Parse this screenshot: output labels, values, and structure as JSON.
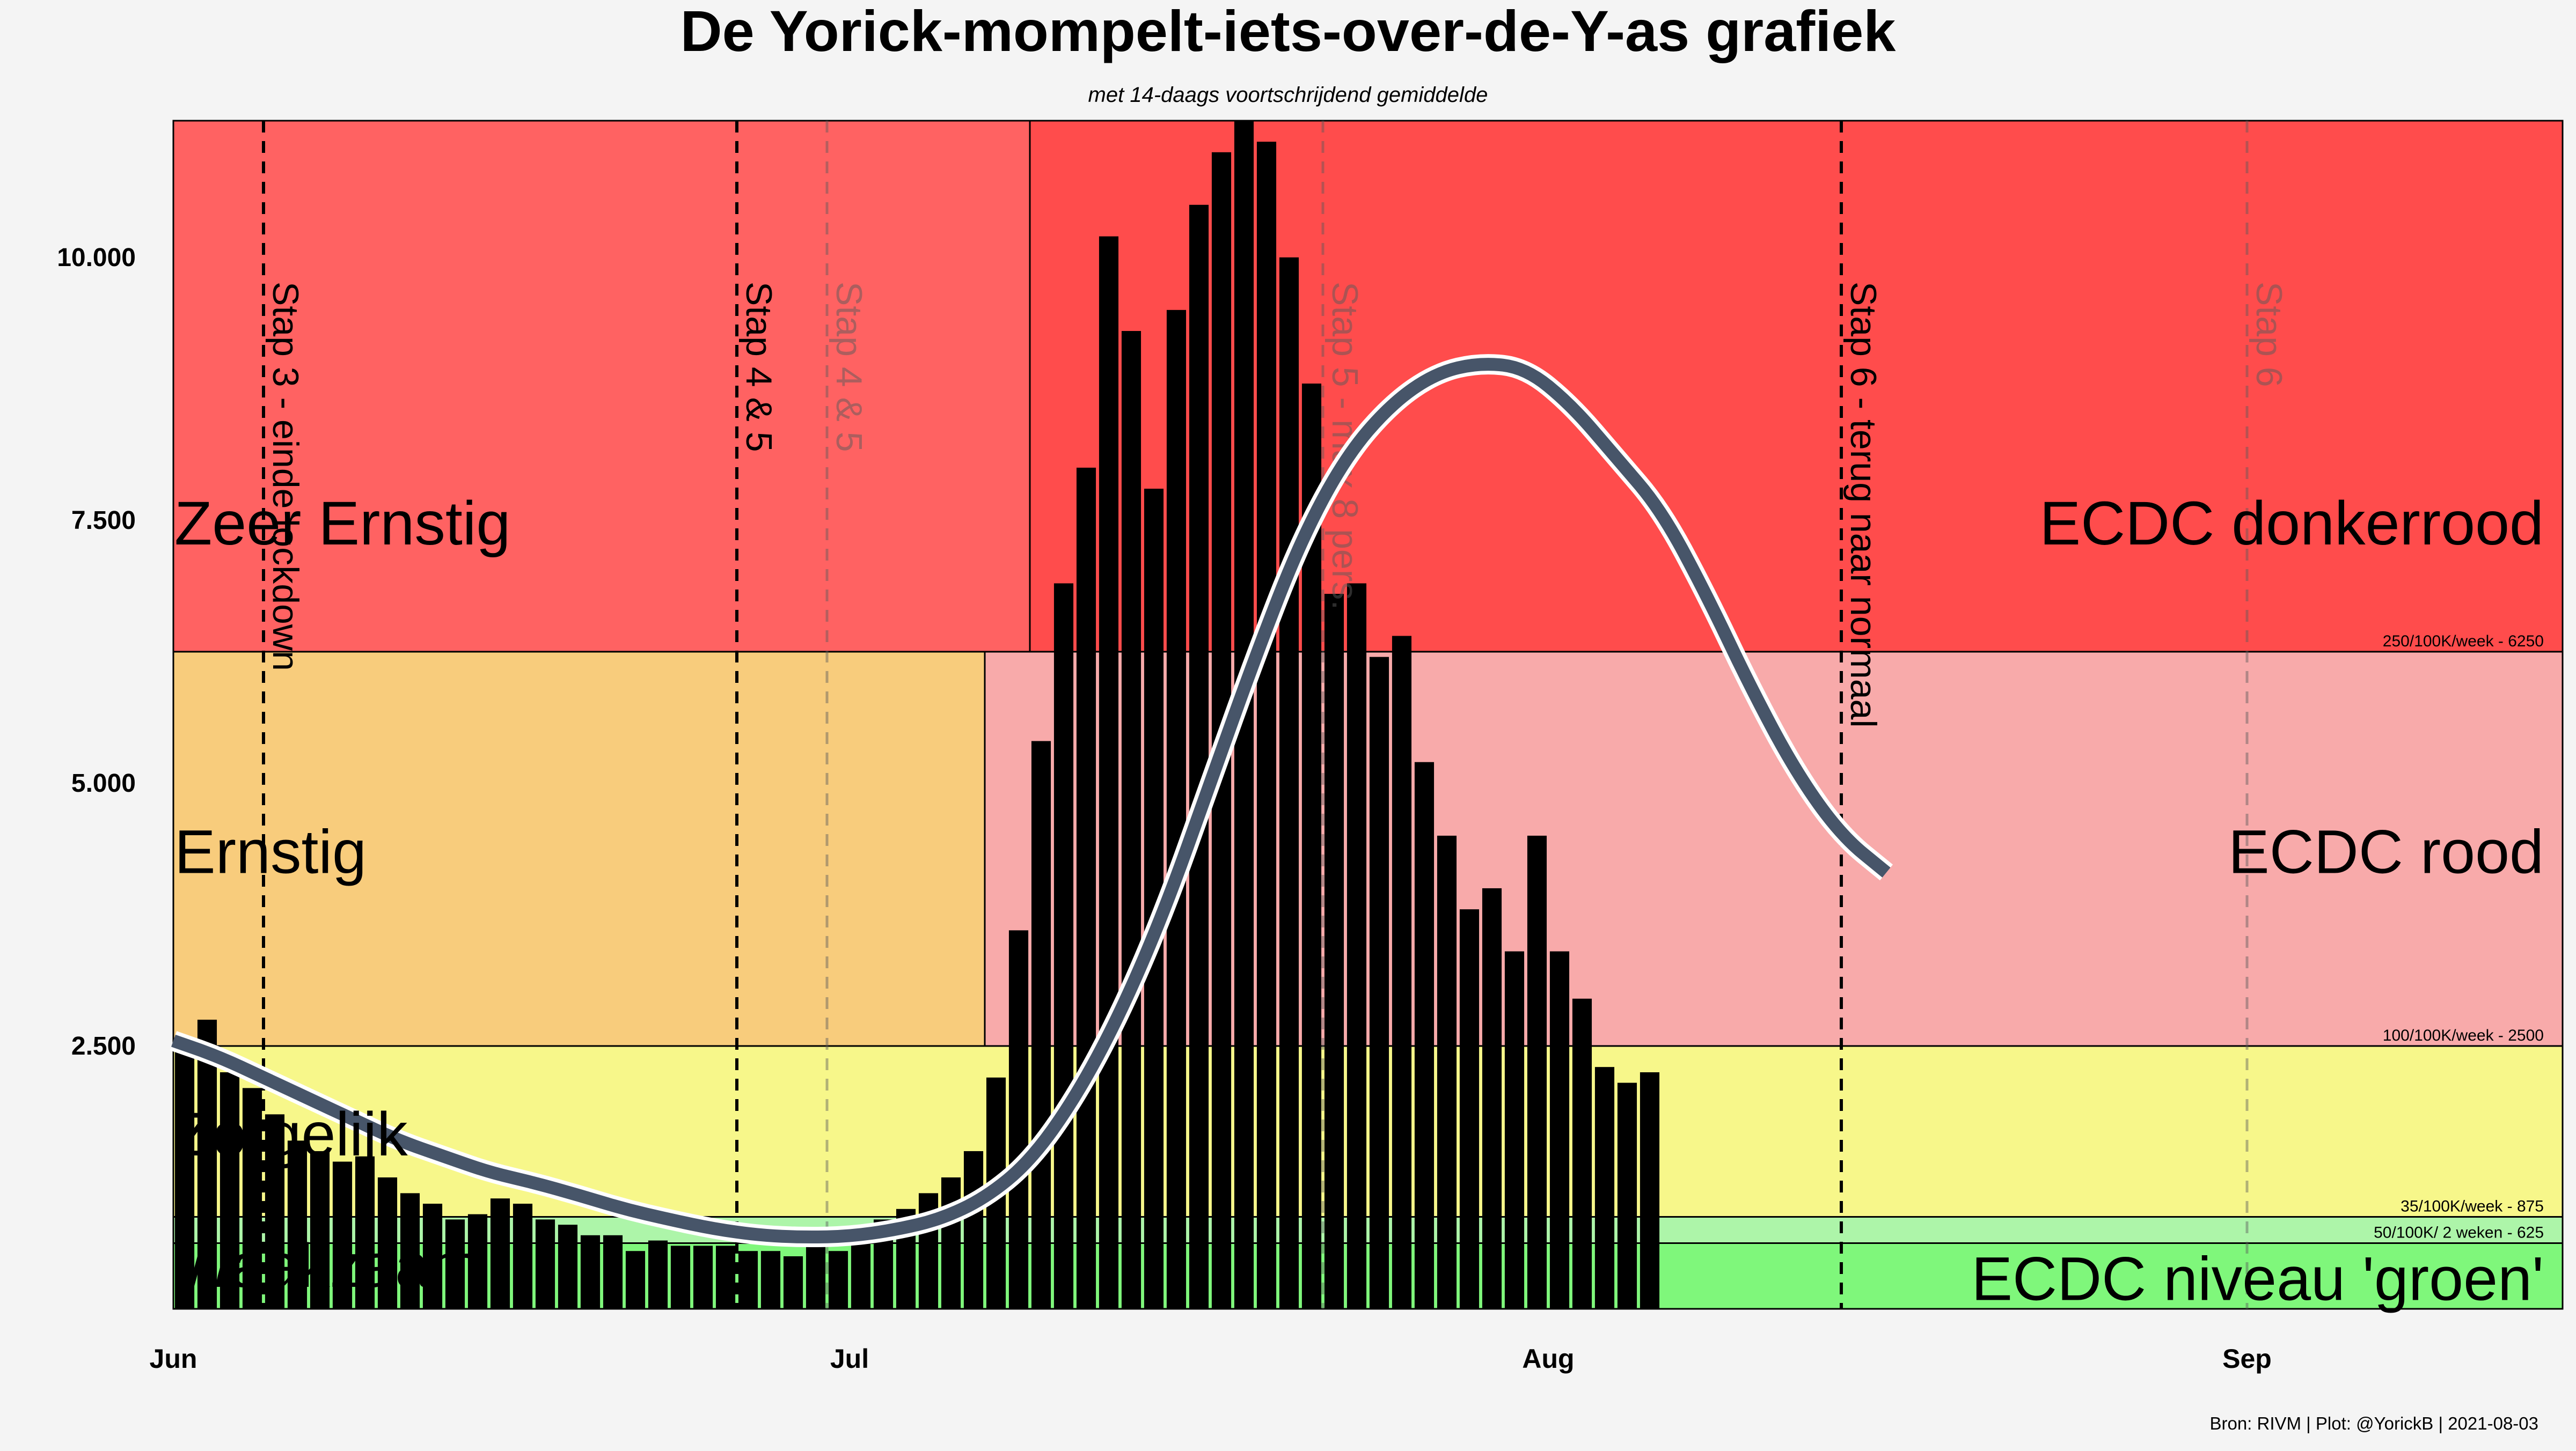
{
  "chart_data": {
    "type": "bar",
    "title": "De Yorick-mompelt-iets-over-de-Y-as grafiek",
    "subtitle": "met 14-daags voortschrijdend gemiddelde",
    "caption": "Bron: RIVM | Plot: @YorickB  |  2021-08-03",
    "xlabel": "",
    "ylabel": "",
    "x_range": [
      "2021-06-01",
      "2021-09-15"
    ],
    "ylim": [
      0,
      11300
    ],
    "y_ticks": [
      {
        "value": 2500,
        "label": "2.500"
      },
      {
        "value": 5000,
        "label": "5.000"
      },
      {
        "value": 7500,
        "label": "7.500"
      },
      {
        "value": 10000,
        "label": "10.000"
      }
    ],
    "x_ticks": [
      {
        "date": "2021-06-01",
        "label": "Jun"
      },
      {
        "date": "2021-07-01",
        "label": "Jul"
      },
      {
        "date": "2021-08-01",
        "label": "Aug"
      },
      {
        "date": "2021-09-01",
        "label": "Sep"
      }
    ],
    "bands": [
      {
        "from": 0,
        "to": 625,
        "start": "2021-06-01",
        "end": "2021-09-15",
        "color": "#7ff77b",
        "label": "ECDC niveau 'groen'",
        "label_side": "right",
        "threshold_label": "50/100K/ 2 weken - 625"
      },
      {
        "from": 625,
        "to": 875,
        "start": "2021-06-01",
        "end": "2021-09-15",
        "color": "#adf5a9",
        "label": "",
        "threshold_label": "35/100K/week - 875"
      },
      {
        "from": 0,
        "to": 875,
        "start": "2021-06-01",
        "end": "2021-06-01",
        "color": "#7ff77b",
        "label": "Waakzaam",
        "label_side": "left"
      },
      {
        "from": 875,
        "to": 2500,
        "start": "2021-06-01",
        "end": "2021-09-15",
        "color": "#f7f78a",
        "label": "Zorgelijk",
        "label_side": "left",
        "threshold_label": "100/100K/week - 2500"
      },
      {
        "from": 2500,
        "to": 6250,
        "start": "2021-06-01",
        "end": "2021-07-07",
        "color": "#f8cc7c",
        "label": "Ernstig",
        "label_side": "left"
      },
      {
        "from": 2500,
        "to": 6250,
        "start": "2021-07-07",
        "end": "2021-09-15",
        "color": "#f8aaaa",
        "label": "ECDC rood",
        "label_side": "right",
        "threshold_label": "250/100K/week - 6250"
      },
      {
        "from": 6250,
        "to": 11300,
        "start": "2021-06-01",
        "end": "2021-07-09",
        "color": "#ff6262",
        "label": "Zeer Ernstig",
        "label_side": "left"
      },
      {
        "from": 6250,
        "to": 11300,
        "start": "2021-07-09",
        "end": "2021-09-15",
        "color": "#ff4c4c",
        "label": "ECDC donkerrood",
        "label_side": "right"
      }
    ],
    "vlines": [
      {
        "date": "2021-06-05",
        "label": "Stap 3 - einde lockdown",
        "style": "solid"
      },
      {
        "date": "2021-06-26",
        "label": "Stap 4 & 5",
        "style": "solid"
      },
      {
        "date": "2021-06-30",
        "label": "Stap 4 & 5",
        "style": "faded"
      },
      {
        "date": "2021-07-22",
        "label": "Stap 5 - max 8 pers.",
        "style": "faded"
      },
      {
        "date": "2021-08-14",
        "label": "Stap 6 - terug naar normaal",
        "style": "solid"
      },
      {
        "date": "2021-09-01",
        "label": "Stap 6",
        "style": "faded"
      }
    ],
    "series": [
      {
        "name": "dagelijks",
        "type": "bar",
        "start_date": "2021-06-01",
        "values": [
          2450,
          2750,
          2250,
          2100,
          1850,
          1600,
          1500,
          1400,
          1450,
          1250,
          1100,
          1000,
          850,
          900,
          1050,
          1000,
          850,
          800,
          700,
          700,
          550,
          650,
          600,
          600,
          600,
          550,
          550,
          500,
          600,
          550,
          650,
          850,
          950,
          1100,
          1250,
          1500,
          2200,
          3600,
          5400,
          6900,
          8000,
          10200,
          9300,
          7800,
          9500,
          10500,
          11000,
          11300,
          11100,
          10000,
          8800,
          6800,
          6900,
          6200,
          6400,
          5200,
          4500,
          3800,
          4000,
          3400,
          4500,
          3400,
          2950,
          2300,
          2150,
          2250
        ]
      },
      {
        "name": "14-daags gemiddelde",
        "type": "line",
        "color": "#475569",
        "points": [
          [
            "2021-06-01",
            2550
          ],
          [
            "2021-06-03",
            2400
          ],
          [
            "2021-06-05",
            2200
          ],
          [
            "2021-06-07",
            2000
          ],
          [
            "2021-06-09",
            1800
          ],
          [
            "2021-06-11",
            1600
          ],
          [
            "2021-06-13",
            1450
          ],
          [
            "2021-06-15",
            1300
          ],
          [
            "2021-06-17",
            1200
          ],
          [
            "2021-06-19",
            1080
          ],
          [
            "2021-06-21",
            950
          ],
          [
            "2021-06-23",
            850
          ],
          [
            "2021-06-25",
            760
          ],
          [
            "2021-06-27",
            700
          ],
          [
            "2021-06-29",
            680
          ],
          [
            "2021-07-01",
            690
          ],
          [
            "2021-07-03",
            750
          ],
          [
            "2021-07-05",
            850
          ],
          [
            "2021-07-07",
            1050
          ],
          [
            "2021-07-09",
            1400
          ],
          [
            "2021-07-11",
            2000
          ],
          [
            "2021-07-13",
            2800
          ],
          [
            "2021-07-15",
            3800
          ],
          [
            "2021-07-17",
            5000
          ],
          [
            "2021-07-19",
            6200
          ],
          [
            "2021-07-21",
            7300
          ],
          [
            "2021-07-23",
            8100
          ],
          [
            "2021-07-25",
            8600
          ],
          [
            "2021-07-27",
            8900
          ],
          [
            "2021-07-29",
            9000
          ],
          [
            "2021-07-31",
            8950
          ],
          [
            "2021-08-02",
            8600
          ],
          [
            "2021-08-04",
            8100
          ],
          [
            "2021-08-06",
            7600
          ],
          [
            "2021-08-08",
            6800
          ],
          [
            "2021-08-10",
            5900
          ],
          [
            "2021-08-12",
            5100
          ],
          [
            "2021-08-14",
            4500
          ],
          [
            "2021-08-16",
            4150
          ]
        ]
      }
    ]
  }
}
